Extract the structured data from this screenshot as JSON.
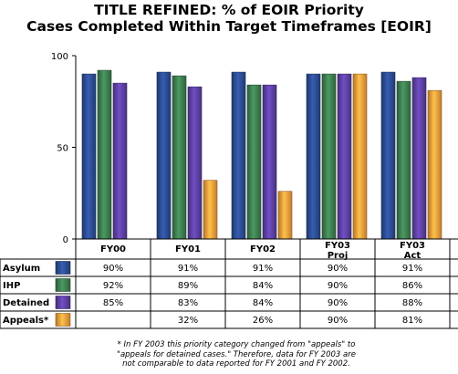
{
  "title": {
    "line1": "TITLE REFINED: % of EOIR Priority",
    "line2": "Cases Completed Within Target Timeframes [EOIR]"
  },
  "chart_data": {
    "type": "bar",
    "title": "TITLE REFINED: % of EOIR Priority Cases Completed Within Target Timeframes [EOIR]",
    "categories": [
      [
        "FY00"
      ],
      [
        "FY01"
      ],
      [
        "FY02"
      ],
      [
        "FY03",
        "Proj"
      ],
      [
        "FY03",
        "Act"
      ]
    ],
    "ylim": [
      0,
      100
    ],
    "yticks": [
      0,
      50,
      100
    ],
    "grid": false,
    "series": [
      {
        "name": "Asylum",
        "color": "#2b4a8f",
        "values": [
          90,
          91,
          91,
          90,
          91
        ],
        "labels": [
          "90%",
          "91%",
          "91%",
          "90%",
          "91%"
        ]
      },
      {
        "name": "IHP",
        "color": "#3c7a4e",
        "values": [
          92,
          89,
          84,
          90,
          86
        ],
        "labels": [
          "92%",
          "89%",
          "84%",
          "90%",
          "86%"
        ]
      },
      {
        "name": "Detained",
        "color": "#5a3e9e",
        "values": [
          85,
          83,
          84,
          90,
          88
        ],
        "labels": [
          "85%",
          "83%",
          "84%",
          "90%",
          "88%"
        ]
      },
      {
        "name": "Appeals*",
        "color": "#f29a3a",
        "values": [
          null,
          32,
          26,
          90,
          81
        ],
        "labels": [
          "",
          "32%",
          "26%",
          "90%",
          "81%"
        ]
      }
    ]
  },
  "footnote": {
    "line1": "* In FY 2003 this priority category changed from \"appeals\" to",
    "line2": "\"appeals for detained cases.\" Therefore, data for FY 2003 are",
    "line3": "not comparable to data reported for FY 2001 and FY 2002."
  }
}
